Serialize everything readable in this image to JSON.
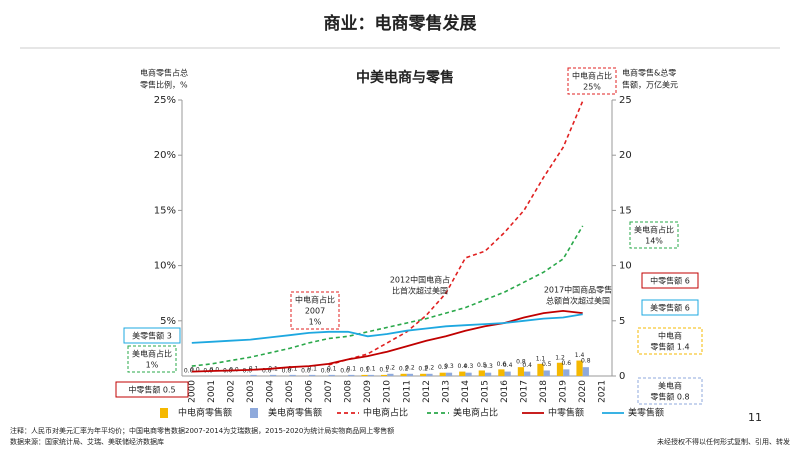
{
  "header": {
    "title": "商业：电商零售发展",
    "page": "11"
  },
  "footer": {
    "notes": [
      "注释：人民币对美元汇率为年平均价；中国电商零售数据2007-2014为艾瑞数据，2015-2020为统计局实物商品网上零售额",
      "数据来源：国家统计局、艾瑞、美联储经济数据库"
    ],
    "rights": "未经授权不得以任何形式复制、引用、转发"
  },
  "chart_data": {
    "type": "combo",
    "title": "中美电商与零售",
    "y_label": [
      "电商零售占总",
      "零售比例，%"
    ],
    "y2_label": [
      "电商零售&总零",
      "售额，万亿美元"
    ],
    "categories": [
      "2000",
      "2001",
      "2002",
      "2003",
      "2004",
      "2005",
      "2006",
      "2007",
      "2008",
      "2009",
      "2010",
      "2011",
      "2012",
      "2013",
      "2014",
      "2015",
      "2016",
      "2017",
      "2018",
      "2019",
      "2020",
      "2021"
    ],
    "ylim": [
      0,
      25
    ],
    "yticks": [
      {
        "value": 5,
        "label": "5%"
      },
      {
        "value": 10,
        "label": "10%"
      },
      {
        "value": 15,
        "label": "15%"
      },
      {
        "value": 20,
        "label": "20%"
      },
      {
        "value": 25,
        "label": "25%"
      }
    ],
    "y2lim": [
      0,
      25
    ],
    "y2ticks": [
      0,
      5,
      10,
      15,
      20,
      25
    ],
    "series": [
      {
        "name": "中电商零售额",
        "type": "bar",
        "axis": "y2",
        "color": "#f5b800",
        "values": [
          0,
          0,
          0,
          0,
          0,
          0,
          0,
          0,
          0,
          0.1,
          0.1,
          0.2,
          0.2,
          0.3,
          0.4,
          0.5,
          0.6,
          0.8,
          1.1,
          1.2,
          1.4,
          null
        ],
        "value_labels": [
          "0.0",
          "0.0",
          "0.0",
          "0.0",
          "0.0",
          "0.0",
          "0.0",
          "0.0",
          "0.0",
          "0.1",
          "0.1",
          "0.2",
          "0.2",
          "0.3",
          "0.4",
          "0.5",
          "0.6",
          "0.8",
          "1.1",
          "1.2",
          "1.4",
          null
        ]
      },
      {
        "name": "美电商零售额",
        "type": "bar",
        "axis": "y2",
        "color": "#8faadc",
        "values": [
          0,
          0,
          0,
          0.1,
          0.1,
          0.1,
          0.1,
          0.1,
          0.1,
          0.1,
          0.2,
          0.2,
          0.2,
          0.3,
          0.3,
          0.3,
          0.4,
          0.4,
          0.5,
          0.6,
          0.8,
          null
        ],
        "value_labels": [
          "0.0",
          "0.0",
          "0.0",
          "0.1",
          "0.1",
          "0.1",
          "0.1",
          "0.1",
          "0.1",
          "0.1",
          "0.2",
          "0.2",
          "0.2",
          "0.3",
          "0.3",
          "0.3",
          "0.4",
          "0.4",
          "0.5",
          "0.6",
          "0.8",
          null
        ]
      },
      {
        "name": "中电商占比",
        "type": "line",
        "dash": true,
        "color": "#e02020",
        "values": [
          null,
          null,
          null,
          null,
          null,
          null,
          null,
          1,
          1.5,
          2,
          3,
          4,
          5.5,
          7.5,
          10.7,
          11.3,
          13,
          15,
          18,
          20.7,
          24.9,
          null
        ]
      },
      {
        "name": "美电商占比",
        "type": "line",
        "dash": true,
        "color": "#2aa84a",
        "values": [
          0.9,
          1.1,
          1.4,
          1.7,
          2.1,
          2.5,
          3,
          3.4,
          3.6,
          4,
          4.4,
          4.8,
          5.2,
          5.7,
          6.2,
          6.9,
          7.6,
          8.5,
          9.4,
          10.6,
          13.6,
          null
        ]
      },
      {
        "name": "中零售额",
        "type": "line",
        "axis": "y2",
        "color": "#c00000",
        "values": [
          0.4,
          0.45,
          0.5,
          0.55,
          0.65,
          0.8,
          0.9,
          1.1,
          1.5,
          1.8,
          2.2,
          2.7,
          3.2,
          3.6,
          4.1,
          4.5,
          4.8,
          5.3,
          5.7,
          5.9,
          5.7,
          null
        ]
      },
      {
        "name": "美零售额",
        "type": "line",
        "axis": "y2",
        "color": "#1ea8e0",
        "values": [
          3,
          3.1,
          3.2,
          3.3,
          3.5,
          3.7,
          3.9,
          4,
          4,
          3.6,
          3.8,
          4.1,
          4.3,
          4.5,
          4.6,
          4.7,
          4.8,
          5,
          5.2,
          5.3,
          5.6,
          null
        ]
      }
    ],
    "annotations": [
      {
        "lines": [
          "中电商占比",
          "25%"
        ],
        "color": "#e02020"
      },
      {
        "lines": [
          "美电商占比",
          "14%"
        ],
        "color": "#2aa84a"
      },
      {
        "lines": [
          "中零售额 6"
        ],
        "color": "#c00000"
      },
      {
        "lines": [
          "美零售额 6"
        ],
        "color": "#1ea8e0"
      },
      {
        "lines": [
          "中电商",
          "零售额 1.4"
        ],
        "color": "#f5b800"
      },
      {
        "lines": [
          "美电商",
          "零售额 0.8"
        ],
        "color": "#8faadc"
      },
      {
        "lines": [
          "美零售额 3"
        ],
        "color": "#1ea8e0"
      },
      {
        "lines": [
          "美电商占比",
          "1%"
        ],
        "color": "#2aa84a"
      },
      {
        "lines": [
          "中零售额 0.5"
        ],
        "color": "#c00000"
      },
      {
        "lines": [
          "中电商占比",
          "2007",
          "1%"
        ],
        "color": "#e02020"
      },
      {
        "lines": [
          "2012中国电商占",
          "比首次超过美国"
        ],
        "color": "#e0a000"
      },
      {
        "lines": [
          "2017中国商品零售",
          "总额首次超过美国"
        ],
        "color": "#e0a000"
      }
    ]
  }
}
